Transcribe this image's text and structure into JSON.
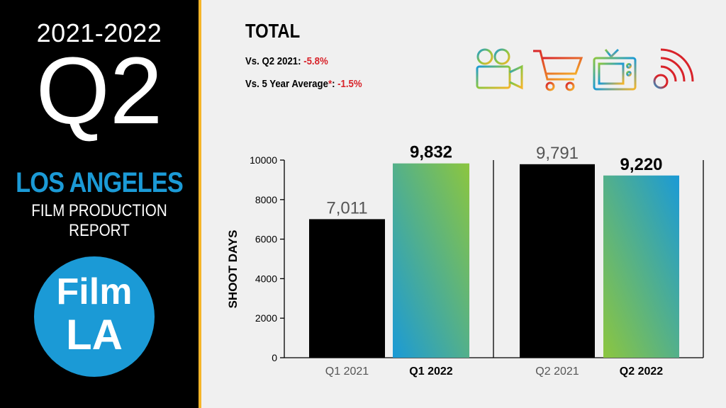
{
  "sidebar": {
    "years": "2021-2022",
    "quarter": "Q2",
    "city": "LOS ANGELES",
    "report_name": "FILM PRODUCTION REPORT",
    "logo_line1": "Film",
    "logo_line2": "LA"
  },
  "header": {
    "title": "TOTAL",
    "stats": [
      {
        "label": "Vs. Q2 2021",
        "asterisk": "",
        "colon": ":",
        "value": "-5.8%"
      },
      {
        "label": "Vs. 5 Year Average",
        "asterisk": "*",
        "colon": ":",
        "value": "-1.5%"
      }
    ],
    "icons": [
      "film-camera-icon",
      "shopping-cart-icon",
      "television-icon",
      "broadcast-icon"
    ]
  },
  "colors": {
    "blue": "#1b9ad6",
    "green": "#8cc63f",
    "gold": "#f6b529",
    "red": "#d8232a"
  },
  "chart_data": {
    "type": "bar",
    "ylabel": "SHOOT DAYS",
    "ylim": [
      0,
      10000
    ],
    "yticks": [
      0,
      2000,
      4000,
      6000,
      8000,
      10000
    ],
    "grid": false,
    "groups": [
      {
        "bars": [
          {
            "category": "Q1 2021",
            "value": 7011,
            "label": "7,011",
            "style": "black",
            "bold": false
          },
          {
            "category": "Q1 2022",
            "value": 9832,
            "label": "9,832",
            "style": "gradient-green-blue",
            "bold": true
          }
        ]
      },
      {
        "bars": [
          {
            "category": "Q2 2021",
            "value": 9791,
            "label": "9,791",
            "style": "black",
            "bold": false
          },
          {
            "category": "Q2 2022",
            "value": 9220,
            "label": "9,220",
            "style": "gradient-blue-green",
            "bold": true
          }
        ]
      }
    ]
  }
}
